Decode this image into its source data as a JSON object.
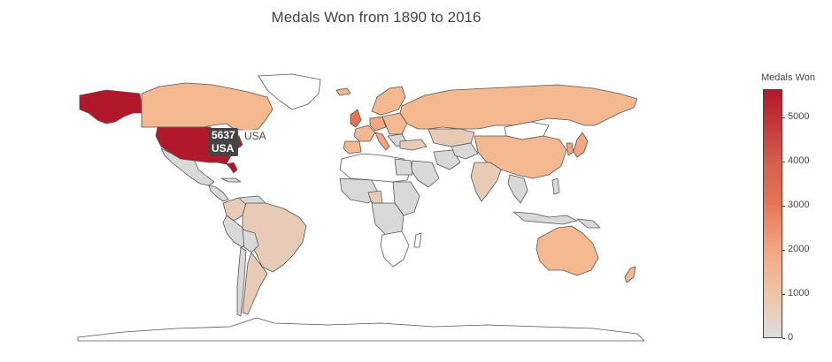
{
  "title": "Medals Won from 1890 to 2016",
  "colorbar": {
    "title": "Medals Won",
    "ticks": [
      "5000",
      "4000",
      "3000",
      "2000",
      "1000",
      "0"
    ],
    "tick_values": [
      5000,
      4000,
      3000,
      2000,
      1000,
      0
    ],
    "max": 5637,
    "colors": [
      "#dcdcdc",
      "#f1c3a5",
      "#f4a582",
      "#e37557",
      "#d6604d",
      "#b2182b"
    ]
  },
  "tooltip": {
    "value": "5637",
    "country": "USA",
    "side_label": "USA"
  },
  "colors": {
    "land_none": "#ffffff",
    "land_low": "#d9d9d9",
    "land_lowmid": "#e8cbb7",
    "land_mid": "#f4b991",
    "land_high": "#b2182b",
    "border": "#555555"
  }
}
